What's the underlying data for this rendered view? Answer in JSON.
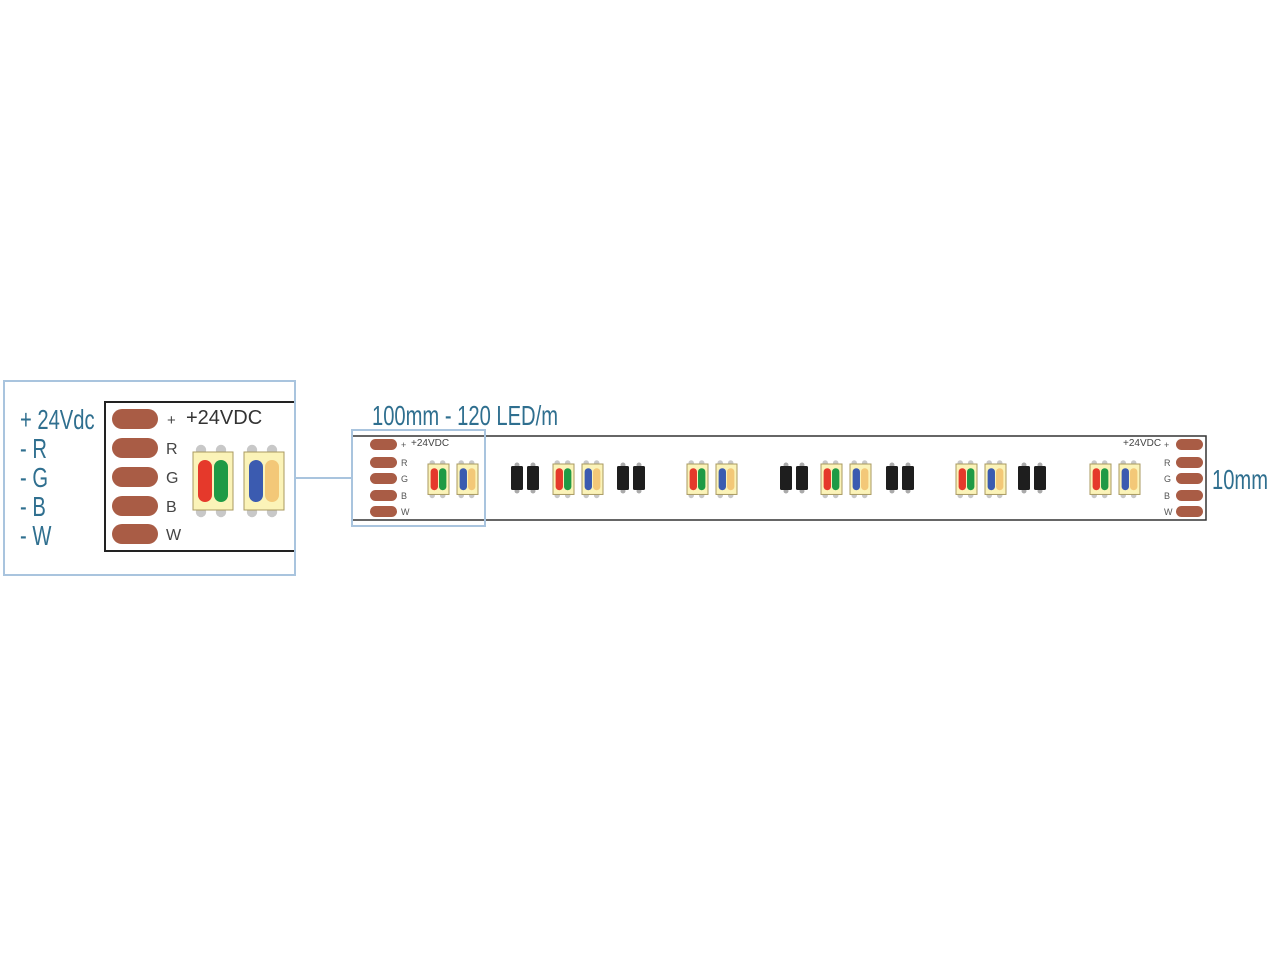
{
  "detail": {
    "wire_labels": [
      "+ 24Vdc",
      "- R",
      "- G",
      "- B",
      "- W"
    ],
    "pad_labels": [
      "+",
      "R",
      "G",
      "B",
      "W"
    ],
    "voltage_label": "+24VDC"
  },
  "strip": {
    "title": "100mm - 120 LED/m",
    "width_label": "10mm",
    "pad_labels": [
      "+",
      "R",
      "G",
      "B",
      "W"
    ],
    "voltage_label": "+24VDC"
  },
  "colors": {
    "label_blue": "#2f6f8f",
    "frame_blue": "#a9c4de",
    "pad": "#a95c45",
    "led_body": "#fbf3b8",
    "red": "#e5392b",
    "green": "#1f9a45",
    "blue": "#3b5bb0",
    "white": "#f3c878",
    "resistor": "#1e1e1e"
  }
}
